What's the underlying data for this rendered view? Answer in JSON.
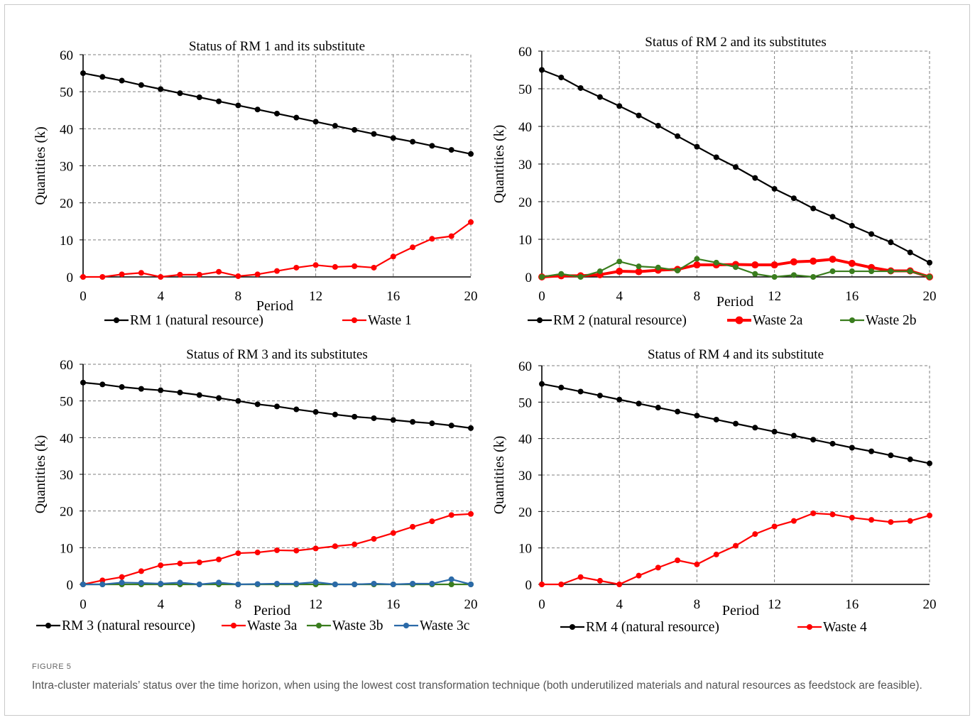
{
  "figure": {
    "label": "FIGURE 5",
    "caption": "Intra-cluster materials’ status over the time horizon, when using the lowest cost transformation technique (both underutilized materials and natural resources as feedstock are feasible)."
  },
  "colors": {
    "black": "#000000",
    "red": "#ff0000",
    "green": "#3a7d1e",
    "blue": "#2b6aa8",
    "grid": "#7f7f7f"
  },
  "chart_data": [
    {
      "type": "line",
      "title": "Status of RM 1 and its substitute",
      "xlabel": "Period",
      "ylabel": "Quantities (k)",
      "xticks": [
        0,
        4,
        8,
        12,
        16,
        20
      ],
      "yticks": [
        0,
        10,
        20,
        30,
        40,
        50,
        60
      ],
      "xlim": [
        0,
        20
      ],
      "ylim": [
        0,
        60
      ],
      "grid": true,
      "legend_position": "bottom",
      "x": [
        0,
        1,
        2,
        3,
        4,
        5,
        6,
        7,
        8,
        9,
        10,
        11,
        12,
        13,
        14,
        15,
        16,
        17,
        18,
        19,
        20
      ],
      "series": [
        {
          "name": "RM 1 (natural resource)",
          "color": "#000000",
          "values": [
            55,
            54,
            53,
            51.8,
            50.7,
            49.6,
            48.5,
            47.4,
            46.3,
            45.2,
            44.1,
            43,
            41.9,
            40.8,
            39.7,
            38.6,
            37.5,
            36.5,
            35.4,
            34.3,
            33.2
          ]
        },
        {
          "name": "Waste 1",
          "color": "#ff0000",
          "values": [
            0,
            0,
            0.7,
            1.1,
            0,
            0.6,
            0.6,
            1.4,
            0.2,
            0.7,
            1.6,
            2.5,
            3.2,
            2.7,
            2.9,
            2.5,
            5.5,
            8,
            10.3,
            11,
            14.8
          ]
        }
      ]
    },
    {
      "type": "line",
      "title": "Status of RM 2 and its substitutes",
      "xlabel": "Period",
      "ylabel": "Quantities (k)",
      "xticks": [
        0,
        4,
        8,
        12,
        16,
        20
      ],
      "yticks": [
        0,
        10,
        20,
        30,
        40,
        50,
        60
      ],
      "xlim": [
        0,
        20
      ],
      "ylim": [
        0,
        60
      ],
      "grid": true,
      "legend_position": "bottom",
      "x": [
        0,
        1,
        2,
        3,
        4,
        5,
        6,
        7,
        8,
        9,
        10,
        11,
        12,
        13,
        14,
        15,
        16,
        17,
        18,
        19,
        20
      ],
      "series": [
        {
          "name": "RM 2 (natural resource)",
          "color": "#000000",
          "values": [
            55,
            53,
            50.2,
            47.8,
            45.4,
            42.9,
            40.2,
            37.4,
            34.6,
            31.8,
            29.2,
            26.3,
            23.4,
            20.9,
            18.2,
            16,
            13.6,
            11.4,
            9.2,
            6.5,
            3.8
          ]
        },
        {
          "name": "Waste 2a",
          "color": "#ff0000",
          "values": [
            0,
            0.3,
            0.3,
            0.6,
            1.5,
            1.4,
            1.8,
            2,
            3.2,
            3.2,
            3.3,
            3.2,
            3.2,
            4,
            4.2,
            4.7,
            3.6,
            2.5,
            1.6,
            1.6,
            0
          ]
        },
        {
          "name": "Waste 2b",
          "color": "#3a7d1e",
          "values": [
            0,
            0.8,
            0,
            1.5,
            4.1,
            2.8,
            2.5,
            1.7,
            4.8,
            3.8,
            2.6,
            0.8,
            0,
            0.5,
            0,
            1.5,
            1.5,
            1.5,
            1.5,
            1.5,
            0
          ]
        }
      ]
    },
    {
      "type": "line",
      "title": "Status of RM 3 and its substitutes",
      "xlabel": "Period",
      "ylabel": "Quantities (k)",
      "xticks": [
        0,
        4,
        8,
        12,
        16,
        20
      ],
      "yticks": [
        0,
        10,
        20,
        30,
        40,
        50,
        60
      ],
      "xlim": [
        0,
        20
      ],
      "ylim": [
        0,
        60
      ],
      "grid": true,
      "legend_position": "bottom",
      "x": [
        0,
        1,
        2,
        3,
        4,
        5,
        6,
        7,
        8,
        9,
        10,
        11,
        12,
        13,
        14,
        15,
        16,
        17,
        18,
        19,
        20
      ],
      "series": [
        {
          "name": "RM 3 (natural resource)",
          "color": "#000000",
          "values": [
            55,
            54.5,
            53.8,
            53.3,
            52.9,
            52.3,
            51.6,
            50.8,
            50,
            49.1,
            48.5,
            47.7,
            47,
            46.3,
            45.7,
            45.3,
            44.8,
            44.3,
            43.9,
            43.3,
            42.6
          ]
        },
        {
          "name": "Waste 3a",
          "color": "#ff0000",
          "values": [
            0,
            1.1,
            2,
            3.6,
            5.2,
            5.7,
            6,
            6.8,
            8.5,
            8.7,
            9.3,
            9.2,
            9.8,
            10.4,
            10.9,
            12.4,
            14,
            15.7,
            17.2,
            18.9,
            19.2
          ]
        },
        {
          "name": "Waste 3b",
          "color": "#3a7d1e",
          "values": [
            0,
            0,
            0,
            0,
            0,
            0,
            0,
            0,
            0,
            0,
            0,
            0,
            0,
            0,
            0,
            0,
            0,
            0,
            0,
            0,
            0
          ]
        },
        {
          "name": "Waste 3c",
          "color": "#2b6aa8",
          "values": [
            0,
            0,
            0.5,
            0.4,
            0.2,
            0.5,
            0,
            0.5,
            0,
            0.1,
            0.2,
            0.2,
            0.6,
            0,
            0,
            0.2,
            0,
            0.2,
            0.2,
            1.4,
            0
          ]
        }
      ]
    },
    {
      "type": "line",
      "title": "Status of RM 4 and its substitute",
      "xlabel": "Period",
      "ylabel": "Quantities (k)",
      "xticks": [
        0,
        4,
        8,
        12,
        16,
        20
      ],
      "yticks": [
        0,
        10,
        20,
        30,
        40,
        50,
        60
      ],
      "xlim": [
        0,
        20
      ],
      "ylim": [
        0,
        60
      ],
      "grid": true,
      "legend_position": "bottom",
      "x": [
        0,
        1,
        2,
        3,
        4,
        5,
        6,
        7,
        8,
        9,
        10,
        11,
        12,
        13,
        14,
        15,
        16,
        17,
        18,
        19,
        20
      ],
      "series": [
        {
          "name": "RM 4 (natural resource)",
          "color": "#000000",
          "values": [
            55,
            54,
            52.9,
            51.8,
            50.7,
            49.6,
            48.5,
            47.4,
            46.3,
            45.2,
            44.1,
            43,
            41.9,
            40.8,
            39.7,
            38.6,
            37.5,
            36.5,
            35.4,
            34.3,
            33.2
          ]
        },
        {
          "name": "Waste 4",
          "color": "#ff0000",
          "values": [
            0,
            0,
            2,
            1,
            0,
            2.4,
            4.6,
            6.6,
            5.5,
            8.2,
            10.6,
            13.8,
            15.9,
            17.4,
            19.5,
            19.2,
            18.3,
            17.7,
            17.1,
            17.4,
            18.9
          ]
        }
      ]
    }
  ]
}
